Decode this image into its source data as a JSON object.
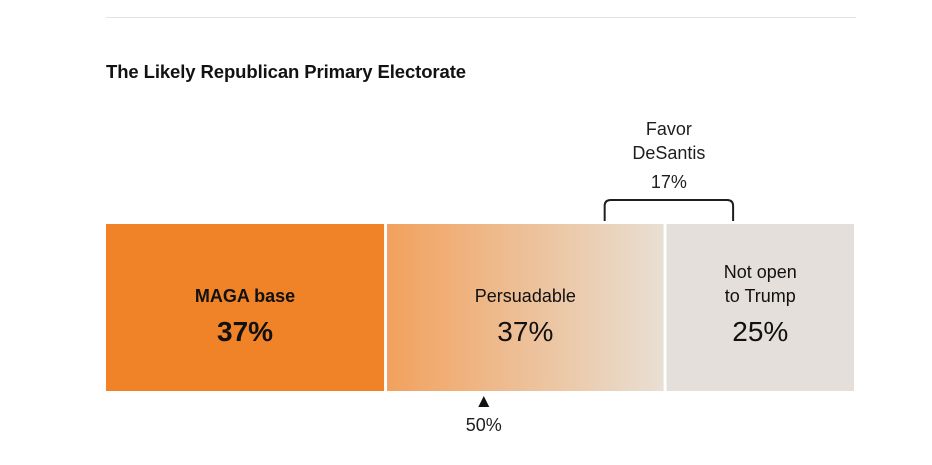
{
  "chart_data": {
    "type": "bar",
    "title": "The Likely Republican Primary Electorate",
    "segments": [
      {
        "label_lines": [
          "MAGA base"
        ],
        "value": 37,
        "value_label": "37%",
        "color": "#f08227",
        "label_bold": true
      },
      {
        "label_lines": [
          "Persuadable"
        ],
        "value": 37,
        "value_label": "37%",
        "gradient": [
          "#f2a15d",
          "#e8dfd3"
        ],
        "label_bold": false
      },
      {
        "label_lines": [
          "Not open",
          "to Trump"
        ],
        "value": 25,
        "value_label": "25%",
        "color": "#e4dfda",
        "label_bold": false
      }
    ],
    "bracket": {
      "label_lines": [
        "Favor",
        "DeSantis"
      ],
      "value": 17,
      "value_label": "17%",
      "start_cum": 66,
      "end_cum": 83
    },
    "marker": {
      "value": 50,
      "label": "50%"
    },
    "xlim": [
      0,
      100
    ]
  },
  "colors": {
    "text": "#121212",
    "marker": "#111111",
    "bracket": "#1e1e1e"
  }
}
